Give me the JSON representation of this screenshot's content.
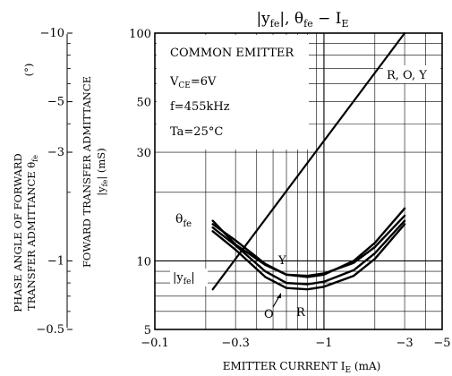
{
  "chart_data": {
    "type": "line",
    "title": {
      "part1": "|y",
      "sub1": "fe",
      "part2": "|, θ",
      "sub2": "fe",
      "part3": " − I",
      "sub3": "E"
    },
    "xlabel": {
      "main": "EMITTER   CURRENT   I",
      "sub": "E",
      "unit": " (mA)"
    },
    "x_scale": "log",
    "x_range": [
      -0.1,
      -5
    ],
    "x_ticks": [
      "−0.1",
      "−0.3",
      "−1",
      "−3",
      "−5"
    ],
    "y_left_scale": "log",
    "y_left_range": [
      -0.5,
      -10
    ],
    "y_left_ticks": [
      "−0.5",
      "−1",
      "−3",
      "−5",
      "−10"
    ],
    "y_right_scale": "log",
    "y_right_range": [
      5,
      100
    ],
    "y_right_ticks": [
      "5",
      "10",
      "30",
      "50",
      "100"
    ],
    "y_left_label": {
      "line1": "PHASE ANGLE OF FORWARD",
      "line2a": "TRANSFER ADMITTANCE  θ",
      "line2sub": "fe",
      "unit": "(°)"
    },
    "y_right_label": {
      "line1": "FOWARD TRANSFER ADMITTANCE",
      "line2a": "|y",
      "line2sub": "fe",
      "line2b": "|  (mS)"
    },
    "conditions": {
      "title": "COMMON EMITTER",
      "vce_main": "V",
      "vce_sub": "CE",
      "vce_val": "=6V",
      "freq": "f=455kHz",
      "ta": "Ta=25°C"
    },
    "series": [
      {
        "name": "θfe",
        "x": [
          -0.22,
          -0.3,
          -0.45,
          -0.6,
          -0.8,
          -1.0,
          -1.5,
          -2.0,
          -3.0
        ],
        "y": [
          -1.5,
          -1.18,
          -0.96,
          -0.87,
          -0.85,
          -0.87,
          -1.0,
          -1.2,
          -1.7
        ]
      },
      {
        "name": "|yfe| O",
        "x": [
          -0.22,
          -0.3,
          -0.45,
          -0.6,
          -0.8,
          -1.0,
          -1.5,
          -2.0,
          -3.0
        ],
        "y": [
          13.5,
          11.2,
          8.5,
          7.6,
          7.5,
          7.7,
          8.6,
          10.2,
          14.5
        ]
      },
      {
        "name": "|yfe| R",
        "x": [
          -0.22,
          -0.3,
          -0.45,
          -0.6,
          -0.8,
          -1.0,
          -1.5,
          -2.0,
          -3.0
        ],
        "y": [
          14.0,
          11.7,
          9.0,
          8.0,
          7.9,
          8.1,
          9.1,
          10.8,
          15.0
        ]
      },
      {
        "name": "|yfe| Y",
        "x": [
          -0.22,
          -0.3,
          -0.45,
          -0.6,
          -0.8,
          -1.0,
          -1.5,
          -2.0,
          -3.0
        ],
        "y": [
          14.5,
          12.3,
          9.7,
          8.7,
          8.6,
          8.8,
          9.8,
          11.5,
          15.8
        ]
      },
      {
        "name": "R, O, Y",
        "x": [
          -0.22,
          -3.0
        ],
        "y": [
          7.5,
          100
        ]
      }
    ],
    "annotations": {
      "rOY": "R, O, Y",
      "theta_main": "θ",
      "theta_sub": "fe",
      "yfe_main": "|y",
      "yfe_sub": "fe",
      "yfe_end": "|",
      "Y": "Y",
      "O": "O",
      "R": "R"
    }
  }
}
